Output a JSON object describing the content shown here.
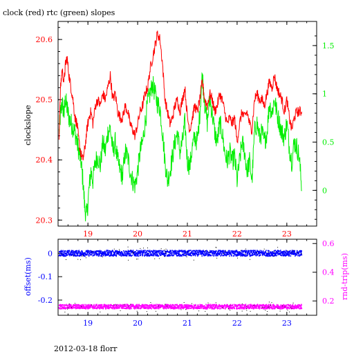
{
  "header": {
    "title": "clock (red) rtc (green) slopes"
  },
  "footer": {
    "caption": "2012-03-18 florr"
  },
  "colors": {
    "red": "#ff0000",
    "green": "#00ee00",
    "blue": "#0000ff",
    "magenta": "#ff00ff",
    "axis": "#000000"
  },
  "chart_data": [
    {
      "type": "line",
      "title": "clock (red) rtc (green) slopes",
      "xlabel": "",
      "ylabel": "clockslope",
      "y2label": "",
      "x_ticks": [
        "19",
        "20",
        "21",
        "22",
        "23"
      ],
      "y_ticks": [
        "20.3",
        "20.4",
        "20.5",
        "20.6"
      ],
      "y2_ticks": [
        "0",
        "0.5",
        "1",
        "1.5"
      ],
      "xlim": [
        18.4,
        23.6
      ],
      "ylim": [
        20.29,
        20.63
      ],
      "y2lim": [
        -0.37,
        1.75
      ],
      "series": [
        {
          "name": "clock",
          "axis": "left",
          "color": "#ff0000",
          "x": [
            18.42,
            18.45,
            18.48,
            18.52,
            18.55,
            18.58,
            18.62,
            18.66,
            18.7,
            18.74,
            18.78,
            18.82,
            18.86,
            18.9,
            18.94,
            18.98,
            19.02,
            19.06,
            19.1,
            19.15,
            19.2,
            19.25,
            19.3,
            19.35,
            19.4,
            19.45,
            19.5,
            19.55,
            19.6,
            19.65,
            19.7,
            19.75,
            19.8,
            19.85,
            19.9,
            19.95,
            20.0,
            20.05,
            20.1,
            20.15,
            20.2,
            20.25,
            20.3,
            20.35,
            20.4,
            20.45,
            20.5,
            20.55,
            20.6,
            20.65,
            20.7,
            20.75,
            20.8,
            20.85,
            20.9,
            20.95,
            21.0,
            21.05,
            21.1,
            21.15,
            21.2,
            21.25,
            21.3,
            21.35,
            21.4,
            21.45,
            21.5,
            21.55,
            21.6,
            21.65,
            21.7,
            21.75,
            21.8,
            21.85,
            21.9,
            21.95,
            22.0,
            22.05,
            22.1,
            22.15,
            22.2,
            22.25,
            22.3,
            22.35,
            22.4,
            22.45,
            22.5,
            22.55,
            22.6,
            22.65,
            22.7,
            22.75,
            22.8,
            22.85,
            22.9,
            22.95,
            23.0,
            23.05,
            23.1,
            23.15,
            23.2,
            23.25,
            23.3
          ],
          "y": [
            20.44,
            20.52,
            20.55,
            20.53,
            20.56,
            20.57,
            20.54,
            20.52,
            20.5,
            20.47,
            20.46,
            20.43,
            20.41,
            20.4,
            20.42,
            20.45,
            20.47,
            20.48,
            20.46,
            20.49,
            20.5,
            20.49,
            20.51,
            20.5,
            20.52,
            20.54,
            20.5,
            20.51,
            20.48,
            20.47,
            20.47,
            20.49,
            20.48,
            20.46,
            20.45,
            20.44,
            20.46,
            20.48,
            20.49,
            20.51,
            20.52,
            20.55,
            20.57,
            20.59,
            20.61,
            20.6,
            20.56,
            20.5,
            20.48,
            20.46,
            20.47,
            20.49,
            20.5,
            20.48,
            20.5,
            20.52,
            20.47,
            20.45,
            20.47,
            20.49,
            20.48,
            20.5,
            20.53,
            20.5,
            20.49,
            20.51,
            20.5,
            20.48,
            20.49,
            20.51,
            20.5,
            20.48,
            20.46,
            20.47,
            20.46,
            20.47,
            20.43,
            20.46,
            20.48,
            20.47,
            20.48,
            20.46,
            20.45,
            20.5,
            20.51,
            20.5,
            20.5,
            20.49,
            20.51,
            20.53,
            20.52,
            20.54,
            20.52,
            20.51,
            20.5,
            20.48,
            20.5,
            20.47,
            20.45,
            20.47,
            20.48,
            20.48,
            20.48
          ]
        },
        {
          "name": "rtc",
          "axis": "right",
          "color": "#00ee00",
          "x": [
            18.42,
            18.45,
            18.48,
            18.52,
            18.55,
            18.58,
            18.62,
            18.66,
            18.7,
            18.74,
            18.78,
            18.82,
            18.86,
            18.9,
            18.94,
            18.98,
            19.02,
            19.06,
            19.1,
            19.15,
            19.2,
            19.25,
            19.3,
            19.35,
            19.4,
            19.45,
            19.5,
            19.55,
            19.6,
            19.65,
            19.7,
            19.75,
            19.8,
            19.85,
            19.9,
            19.95,
            20.0,
            20.05,
            20.1,
            20.15,
            20.2,
            20.25,
            20.3,
            20.35,
            20.4,
            20.45,
            20.5,
            20.55,
            20.6,
            20.65,
            20.7,
            20.75,
            20.8,
            20.85,
            20.9,
            20.95,
            21.0,
            21.05,
            21.1,
            21.15,
            21.2,
            21.25,
            21.3,
            21.35,
            21.4,
            21.45,
            21.5,
            21.55,
            21.6,
            21.65,
            21.7,
            21.75,
            21.8,
            21.85,
            21.9,
            21.95,
            22.0,
            22.05,
            22.1,
            22.15,
            22.2,
            22.25,
            22.3,
            22.35,
            22.4,
            22.45,
            22.5,
            22.55,
            22.6,
            22.65,
            22.7,
            22.75,
            22.8,
            22.85,
            22.9,
            22.95,
            23.0,
            23.05,
            23.1,
            23.15,
            23.2,
            23.25,
            23.3
          ],
          "y": [
            0.6,
            0.8,
            0.9,
            0.8,
            0.95,
            0.85,
            0.75,
            0.7,
            0.65,
            0.6,
            0.5,
            0.4,
            0.3,
            0.1,
            -0.2,
            -0.25,
            0.0,
            0.2,
            0.1,
            0.3,
            0.35,
            0.25,
            0.5,
            0.4,
            0.6,
            0.65,
            0.4,
            0.5,
            0.3,
            0.2,
            0.15,
            0.4,
            0.35,
            0.2,
            0.1,
            0.05,
            0.2,
            0.4,
            0.5,
            0.7,
            0.9,
            1.0,
            1.1,
            1.0,
            0.9,
            0.85,
            0.6,
            0.3,
            0.1,
            0.2,
            0.35,
            0.5,
            0.6,
            0.4,
            0.5,
            0.7,
            0.3,
            0.25,
            0.45,
            0.55,
            0.5,
            0.8,
            1.2,
            0.9,
            0.7,
            0.95,
            0.8,
            0.6,
            0.5,
            0.7,
            0.6,
            0.4,
            0.3,
            0.4,
            0.3,
            0.35,
            0.1,
            0.3,
            0.5,
            0.4,
            0.2,
            0.3,
            0.1,
            0.6,
            0.7,
            0.55,
            0.6,
            0.5,
            0.6,
            0.9,
            0.8,
            0.95,
            0.8,
            0.7,
            0.6,
            0.55,
            0.7,
            0.45,
            0.3,
            0.5,
            0.45,
            0.35,
            0.0
          ]
        }
      ]
    },
    {
      "type": "scatter",
      "title": "",
      "xlabel": "",
      "ylabel": "offset(ms)",
      "y2label": "rnd-trip(ms)",
      "x_ticks": [
        "19",
        "20",
        "21",
        "22",
        "23"
      ],
      "y_ticks": [
        "0",
        "-0.1",
        "-0.2"
      ],
      "y2_ticks": [
        "0.2",
        "0.4",
        "0.6"
      ],
      "xlim": [
        18.4,
        23.6
      ],
      "ylim": [
        -0.265,
        0.06
      ],
      "y2lim": [
        0.1,
        0.63
      ],
      "series": [
        {
          "name": "offset",
          "axis": "left",
          "color": "#0000ff",
          "x_range": [
            18.42,
            23.3
          ],
          "y_center": 0.0,
          "y_spread": 0.012
        },
        {
          "name": "rnd-trip",
          "axis": "right",
          "color": "#ff00ff",
          "x_range": [
            18.42,
            23.3
          ],
          "y_center": 0.16,
          "y_spread": 0.015
        }
      ]
    }
  ]
}
